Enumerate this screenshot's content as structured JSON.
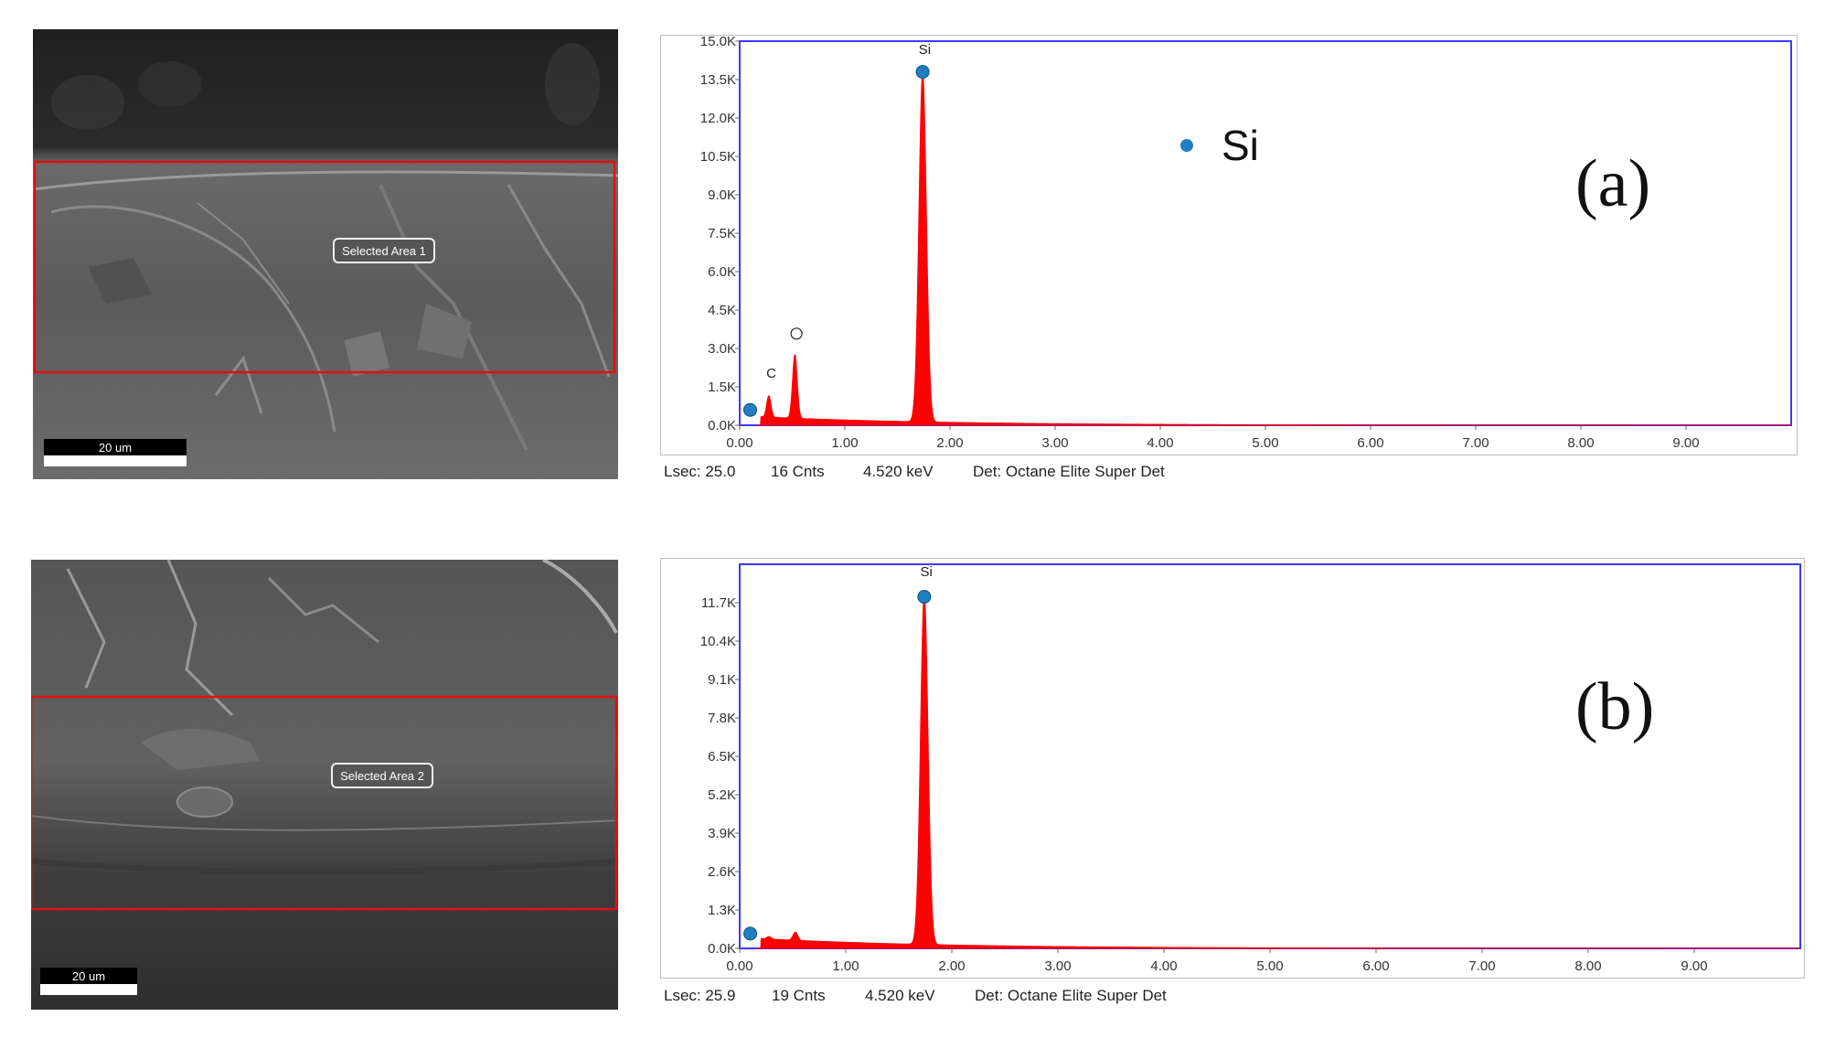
{
  "sem_images": [
    {
      "area_label": "Selected Area 1",
      "scale_label": "20 um"
    },
    {
      "area_label": "Selected Area 2",
      "scale_label": "20 um"
    }
  ],
  "chart_data": [
    {
      "type": "area",
      "panel_label": "(a)",
      "xlim": [
        0,
        10
      ],
      "ylim": [
        0,
        15000
      ],
      "x_ticks": [
        0,
        1,
        2,
        3,
        4,
        5,
        6,
        7,
        8,
        9
      ],
      "x_tick_labels": [
        "0.00",
        "1.00",
        "2.00",
        "3.00",
        "4.00",
        "5.00",
        "6.00",
        "7.00",
        "8.00",
        "9.00"
      ],
      "y_ticks": [
        0,
        1500,
        3000,
        4500,
        6000,
        7500,
        9000,
        10500,
        12000,
        13500,
        15000
      ],
      "y_tick_labels": [
        "0.0K",
        "1.5K",
        "3.0K",
        "4.5K",
        "6.0K",
        "7.5K",
        "9.0K",
        "10.5K",
        "12.0K",
        "13.5K",
        "15.0K"
      ],
      "peaks": [
        {
          "element": "C",
          "energy": 0.277,
          "counts": 1150
        },
        {
          "element": "O",
          "energy": 0.525,
          "counts": 2750
        },
        {
          "element": "Si",
          "energy": 1.74,
          "counts": 13800
        }
      ],
      "markers": [
        {
          "energy": 0.1,
          "counts": 600
        },
        {
          "energy": 1.74,
          "counts": 13800
        }
      ],
      "peak_labels": [
        {
          "text": "C",
          "energy": 0.3,
          "counts": 1850
        },
        {
          "text": "O",
          "energy": 0.54,
          "counts": 3400
        },
        {
          "text": "Si",
          "energy": 1.76,
          "counts": 14500
        }
      ],
      "legend": {
        "text": "Si",
        "color": "#1f7fc0"
      },
      "status": {
        "lsec": "Lsec: 25.0",
        "cnts": "16 Cnts",
        "kev": "4.520 keV",
        "det": "Det: Octane Elite Super Det"
      }
    },
    {
      "type": "area",
      "panel_label": "(b)",
      "xlim": [
        0,
        10
      ],
      "ylim": [
        0,
        13000
      ],
      "x_ticks": [
        0,
        1,
        2,
        3,
        4,
        5,
        6,
        7,
        8,
        9
      ],
      "x_tick_labels": [
        "0.00",
        "1.00",
        "2.00",
        "3.00",
        "4.00",
        "5.00",
        "6.00",
        "7.00",
        "8.00",
        "9.00"
      ],
      "y_ticks": [
        0,
        1300,
        2600,
        3900,
        5200,
        6500,
        7800,
        9100,
        10400,
        11700
      ],
      "y_tick_labels": [
        "0.0K",
        "1.3K",
        "2.6K",
        "3.9K",
        "5.2K",
        "6.5K",
        "7.8K",
        "9.1K",
        "10.4K",
        "11.7K"
      ],
      "peaks": [
        {
          "element": "C",
          "energy": 0.277,
          "counts": 400
        },
        {
          "element": "O",
          "energy": 0.525,
          "counts": 550
        },
        {
          "element": "Si",
          "energy": 1.74,
          "counts": 12000
        }
      ],
      "markers": [
        {
          "energy": 0.1,
          "counts": 500
        },
        {
          "energy": 1.74,
          "counts": 11900
        }
      ],
      "peak_labels": [
        {
          "text": "Si",
          "energy": 1.76,
          "counts": 12600
        }
      ],
      "status": {
        "lsec": "Lsec: 25.9",
        "cnts": "19 Cnts",
        "kev": "4.520 keV",
        "det": "Det: Octane Elite Super Det"
      }
    }
  ],
  "colors": {
    "spectrum": "#ff0000",
    "marker": "#1f7fc0",
    "frame": "#3a3aff",
    "selection": "#e01010"
  }
}
